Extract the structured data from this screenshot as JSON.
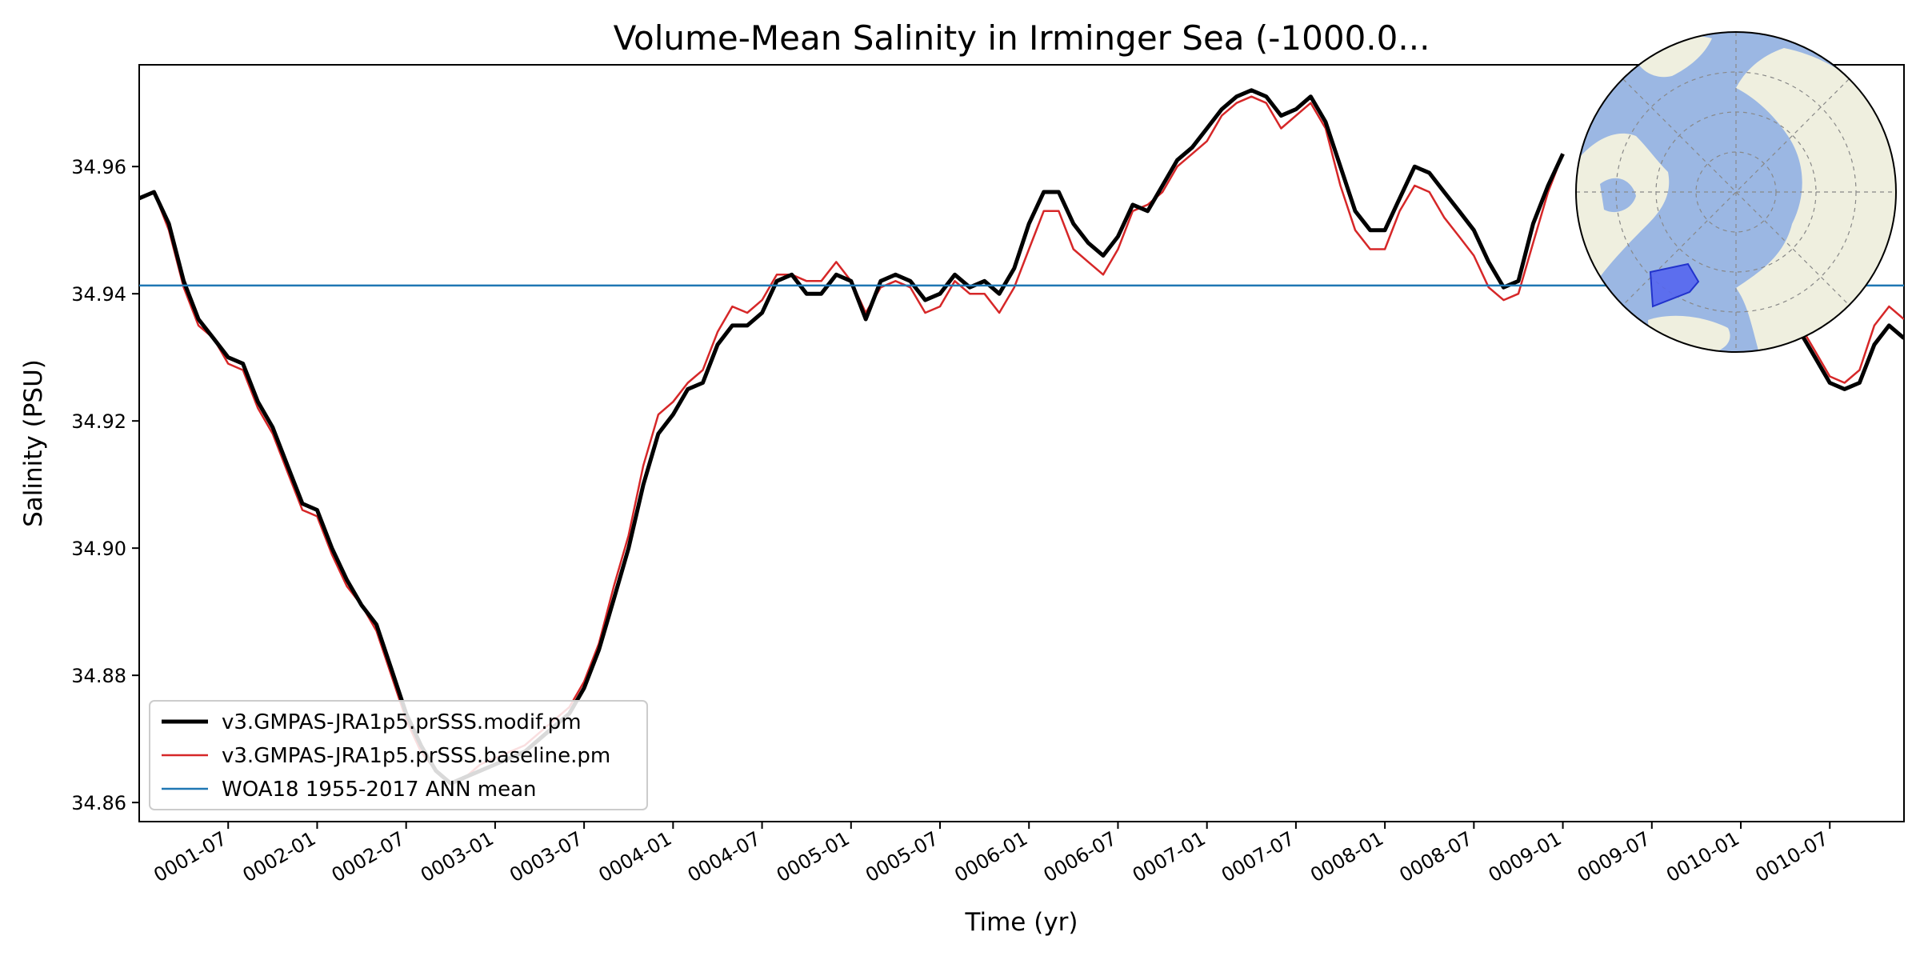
{
  "chart_data": {
    "type": "line",
    "title": "Volume-Mean Salinity in Irminger Sea (-1000.0...",
    "xlabel": "Time (yr)",
    "ylabel": "Salinity (PSU)",
    "xlim": [
      1.0,
      10.917
    ],
    "ylim": [
      34.857,
      34.976
    ],
    "grid": false,
    "legend_position": "lower-left",
    "x_ticks": [
      {
        "value": 1.5,
        "label": "0001-07"
      },
      {
        "value": 2.0,
        "label": "0002-01"
      },
      {
        "value": 2.5,
        "label": "0002-07"
      },
      {
        "value": 3.0,
        "label": "0003-01"
      },
      {
        "value": 3.5,
        "label": "0003-07"
      },
      {
        "value": 4.0,
        "label": "0004-01"
      },
      {
        "value": 4.5,
        "label": "0004-07"
      },
      {
        "value": 5.0,
        "label": "0005-01"
      },
      {
        "value": 5.5,
        "label": "0005-07"
      },
      {
        "value": 6.0,
        "label": "0006-01"
      },
      {
        "value": 6.5,
        "label": "0006-07"
      },
      {
        "value": 7.0,
        "label": "0007-01"
      },
      {
        "value": 7.5,
        "label": "0007-07"
      },
      {
        "value": 8.0,
        "label": "0008-01"
      },
      {
        "value": 8.5,
        "label": "0008-07"
      },
      {
        "value": 9.0,
        "label": "0009-01"
      },
      {
        "value": 9.5,
        "label": "0009-07"
      },
      {
        "value": 10.0,
        "label": "0010-01"
      },
      {
        "value": 10.5,
        "label": "0010-07"
      }
    ],
    "y_ticks": [
      {
        "value": 34.86,
        "label": "34.86"
      },
      {
        "value": 34.88,
        "label": "34.88"
      },
      {
        "value": 34.9,
        "label": "34.90"
      },
      {
        "value": 34.92,
        "label": "34.92"
      },
      {
        "value": 34.94,
        "label": "34.94"
      },
      {
        "value": 34.96,
        "label": "34.96"
      }
    ],
    "series": [
      {
        "name": "v3.GMPAS-JRA1p5.prSSS.modif.pm",
        "color": "#000000",
        "style": "thick",
        "x": [
          1.0,
          1.083,
          1.167,
          1.25,
          1.333,
          1.417,
          1.5,
          1.583,
          1.667,
          1.75,
          1.833,
          1.917,
          2.0,
          2.083,
          2.167,
          2.25,
          2.333,
          2.417,
          2.5,
          2.583,
          2.667,
          2.75,
          2.833,
          2.917,
          3.0,
          3.083,
          3.167,
          3.25,
          3.333,
          3.417,
          3.5,
          3.583,
          3.667,
          3.75,
          3.833,
          3.917,
          4.0,
          4.083,
          4.167,
          4.25,
          4.333,
          4.417,
          4.5,
          4.583,
          4.667,
          4.75,
          4.833,
          4.917,
          5.0,
          5.083,
          5.167,
          5.25,
          5.333,
          5.417,
          5.5,
          5.583,
          5.667,
          5.75,
          5.833,
          5.917,
          6.0,
          6.083,
          6.167,
          6.25,
          6.333,
          6.417,
          6.5,
          6.583,
          6.667,
          6.75,
          6.833,
          6.917,
          7.0,
          7.083,
          7.167,
          7.25,
          7.333,
          7.417,
          7.5,
          7.583,
          7.667,
          7.75,
          7.833,
          7.917,
          8.0,
          8.083,
          8.167,
          8.25,
          8.333,
          8.417,
          8.5,
          8.583,
          8.667,
          8.75,
          8.833,
          8.917,
          9.0
        ],
        "values": [
          34.955,
          34.956,
          34.951,
          34.942,
          34.936,
          34.933,
          34.93,
          34.929,
          34.923,
          34.919,
          34.913,
          34.907,
          34.906,
          34.9,
          34.895,
          34.891,
          34.888,
          34.881,
          34.874,
          34.869,
          34.865,
          34.863,
          34.864,
          34.865,
          34.866,
          34.867,
          34.868,
          34.87,
          34.872,
          34.874,
          34.878,
          34.884,
          34.892,
          34.9,
          34.91,
          34.918,
          34.921,
          34.925,
          34.926,
          34.932,
          34.935,
          34.935,
          34.937,
          34.942,
          34.943,
          34.94,
          34.94,
          34.943,
          34.942,
          34.936,
          34.942,
          34.943,
          34.942,
          34.939,
          34.94,
          34.943,
          34.941,
          34.942,
          34.94,
          34.944,
          34.951,
          34.956,
          34.956,
          34.951,
          34.948,
          34.946,
          34.949,
          34.954,
          34.953,
          34.957,
          34.961,
          34.963,
          34.966,
          34.969,
          34.971,
          34.972,
          34.971,
          34.968,
          34.969,
          34.971,
          34.967,
          34.96,
          34.953,
          34.95,
          34.95,
          34.955,
          34.96,
          34.959,
          34.956,
          34.953,
          34.95,
          34.945,
          34.941,
          34.942,
          34.951,
          34.957,
          34.962
        ]
      },
      {
        "name": "v3.GMPAS-JRA1p5.prSSS.baseline.pm",
        "color": "#d62728",
        "style": "thin",
        "x": [
          1.0,
          1.083,
          1.167,
          1.25,
          1.333,
          1.417,
          1.5,
          1.583,
          1.667,
          1.75,
          1.833,
          1.917,
          2.0,
          2.083,
          2.167,
          2.25,
          2.333,
          2.417,
          2.5,
          2.583,
          2.667,
          2.75,
          2.833,
          2.917,
          3.0,
          3.083,
          3.167,
          3.25,
          3.333,
          3.417,
          3.5,
          3.583,
          3.667,
          3.75,
          3.833,
          3.917,
          4.0,
          4.083,
          4.167,
          4.25,
          4.333,
          4.417,
          4.5,
          4.583,
          4.667,
          4.75,
          4.833,
          4.917,
          5.0,
          5.083,
          5.167,
          5.25,
          5.333,
          5.417,
          5.5,
          5.583,
          5.667,
          5.75,
          5.833,
          5.917,
          6.0,
          6.083,
          6.167,
          6.25,
          6.333,
          6.417,
          6.5,
          6.583,
          6.667,
          6.75,
          6.833,
          6.917,
          7.0,
          7.083,
          7.167,
          7.25,
          7.333,
          7.417,
          7.5,
          7.583,
          7.667,
          7.75,
          7.833,
          7.917,
          8.0,
          8.083,
          8.167,
          8.25,
          8.333,
          8.417,
          8.5,
          8.583,
          8.667,
          8.75,
          8.833,
          8.917,
          9.0
        ],
        "values": [
          34.955,
          34.956,
          34.95,
          34.941,
          34.935,
          34.933,
          34.929,
          34.928,
          34.922,
          34.918,
          34.912,
          34.906,
          34.905,
          34.899,
          34.894,
          34.891,
          34.887,
          34.88,
          34.873,
          34.868,
          34.865,
          34.863,
          34.864,
          34.866,
          34.867,
          34.868,
          34.869,
          34.871,
          34.873,
          34.875,
          34.879,
          34.885,
          34.894,
          34.902,
          34.913,
          34.921,
          34.923,
          34.926,
          34.928,
          34.934,
          34.938,
          34.937,
          34.939,
          34.943,
          34.943,
          34.942,
          34.942,
          34.945,
          34.942,
          34.937,
          34.941,
          34.942,
          34.941,
          34.937,
          34.938,
          34.942,
          34.94,
          34.94,
          34.937,
          34.941,
          34.947,
          34.953,
          34.953,
          34.947,
          34.945,
          34.943,
          34.947,
          34.953,
          34.954,
          34.956,
          34.96,
          34.962,
          34.964,
          34.968,
          34.97,
          34.971,
          34.97,
          34.966,
          34.968,
          34.97,
          34.966,
          34.957,
          34.95,
          34.947,
          34.947,
          34.953,
          34.957,
          34.956,
          34.952,
          34.949,
          34.946,
          34.941,
          34.939,
          34.94,
          34.948,
          34.956,
          34.962
        ]
      },
      {
        "name": "WOA18 1955-2017 ANN mean",
        "color": "#1f77b4",
        "style": "hline",
        "x": [
          1.0,
          10.917
        ],
        "values": [
          34.9413,
          34.9413
        ]
      }
    ],
    "visible_tail_segments": [
      {
        "series": "v3.GMPAS-JRA1p5.prSSS.modif.pm",
        "x": [
          10.333,
          10.417,
          10.5,
          10.583,
          10.667,
          10.75,
          10.833,
          10.917
        ],
        "values": [
          34.934,
          34.93,
          34.926,
          34.925,
          34.926,
          34.932,
          34.935,
          34.933
        ]
      },
      {
        "series": "v3.GMPAS-JRA1p5.prSSS.baseline.pm",
        "x": [
          10.333,
          10.417,
          10.5,
          10.583,
          10.667,
          10.75,
          10.833,
          10.917
        ],
        "values": [
          34.935,
          34.931,
          34.927,
          34.926,
          34.928,
          34.935,
          34.938,
          34.936
        ]
      }
    ],
    "inset": {
      "type": "map",
      "projection": "north-polar-stereographic",
      "ocean_color": "#9bb7e3",
      "land_color": "#efefdf",
      "region_color": "#5566ee",
      "region": "Irminger Sea"
    }
  }
}
